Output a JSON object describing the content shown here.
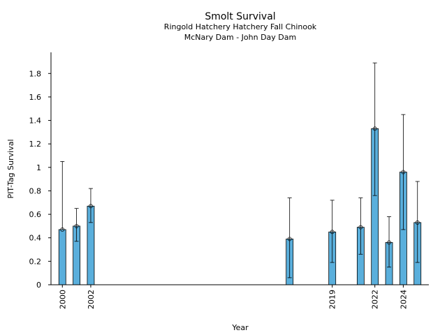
{
  "chart_data": {
    "type": "bar",
    "title": "Smolt Survival",
    "subtitle_lines": [
      "Ringold Hatchery Hatchery Fall Chinook",
      "McNary Dam - John Day Dam"
    ],
    "xlabel": "Year",
    "ylabel": "PIT-Tag Survival",
    "xlim": [
      1999.2,
      2025.8
    ],
    "ylim": [
      0,
      1.98
    ],
    "yticks": [
      0,
      0.2,
      0.4,
      0.6,
      0.8,
      1,
      1.2,
      1.4,
      1.6,
      1.8
    ],
    "ytick_labels": [
      "0",
      "0.2",
      "0.4",
      "0.6",
      "0.8",
      "1",
      "1.2",
      "1.4",
      "1.6",
      "1.8"
    ],
    "xticks": [
      2000,
      2002,
      2019,
      2022,
      2024
    ],
    "xtick_labels": [
      "2000",
      "2002",
      "2019",
      "2022",
      "2024"
    ],
    "bar_color": "#5aafdc",
    "series": [
      {
        "year": 2000,
        "value": 0.47,
        "lower": null,
        "upper": 1.05
      },
      {
        "year": 2001,
        "value": 0.5,
        "lower": 0.37,
        "upper": 0.65
      },
      {
        "year": 2002,
        "value": 0.67,
        "lower": 0.53,
        "upper": 0.82
      },
      {
        "year": 2016,
        "value": 0.39,
        "lower": 0.06,
        "upper": 0.74
      },
      {
        "year": 2019,
        "value": 0.45,
        "lower": 0.19,
        "upper": 0.72
      },
      {
        "year": 2021,
        "value": 0.49,
        "lower": 0.26,
        "upper": 0.74
      },
      {
        "year": 2022,
        "value": 1.33,
        "lower": 0.76,
        "upper": 1.89
      },
      {
        "year": 2023,
        "value": 0.36,
        "lower": 0.15,
        "upper": 0.58
      },
      {
        "year": 2024,
        "value": 0.96,
        "lower": 0.47,
        "upper": 1.45
      },
      {
        "year": 2025,
        "value": 0.53,
        "lower": 0.19,
        "upper": 0.88
      }
    ]
  }
}
